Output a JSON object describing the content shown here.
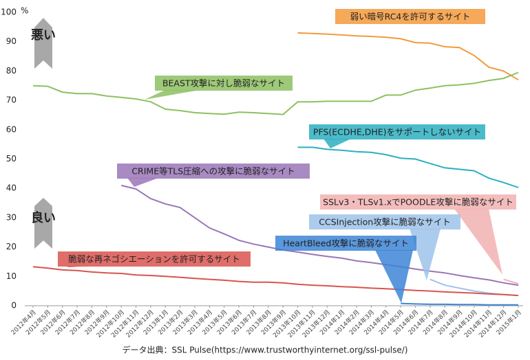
{
  "chart_data": {
    "type": "line",
    "y_unit": "%",
    "categories": [
      "2012年4月",
      "2012年5月",
      "2012年6月",
      "2012年7月",
      "2012年8月",
      "2012年9月",
      "2012年10月",
      "2012年11月",
      "2012年12月",
      "2013年1月",
      "2013年2月",
      "2013年3月",
      "2013年4月",
      "2013年5月",
      "2013年6月",
      "2013年7月",
      "2013年8月",
      "2013年9月",
      "2013年10月",
      "2013年11月",
      "2013年12月",
      "2014年1月",
      "2014年2月",
      "2014年3月",
      "2014年4月",
      "2014年5月",
      "2014年6月",
      "2014年7月",
      "2014年8月",
      "2014年9月",
      "2014年10月",
      "2014年11月",
      "2014年12月",
      "2015年1月"
    ],
    "series": [
      {
        "name": "弱い暗号RC4を許可するサイト",
        "color": "#f39a3c",
        "values": [
          null,
          null,
          null,
          null,
          null,
          null,
          null,
          null,
          null,
          null,
          null,
          null,
          null,
          null,
          null,
          null,
          null,
          null,
          93,
          92.8,
          92.6,
          92.3,
          92,
          91.8,
          91.5,
          91,
          89.7,
          89.5,
          88.3,
          88,
          85.3,
          81.3,
          80,
          77
        ]
      },
      {
        "name": "BEAST攻撃に対し脆弱なサイト",
        "color": "#8dc060",
        "values": [
          75,
          74.8,
          72.8,
          72.3,
          72.3,
          71.5,
          71,
          70.5,
          69.5,
          67,
          66.5,
          65.8,
          65.5,
          65.3,
          66,
          65.8,
          65.5,
          65.2,
          69.5,
          69.5,
          69.7,
          69.7,
          69.7,
          69.7,
          71.8,
          71.8,
          73.5,
          74.2,
          75,
          75.3,
          75.8,
          76.8,
          77.5,
          79.5
        ]
      },
      {
        "name": "PFS(ECDHE,DHE)をサポートしないサイト",
        "color": "#2bafc1",
        "values": [
          null,
          null,
          null,
          null,
          null,
          null,
          null,
          null,
          null,
          null,
          null,
          null,
          null,
          null,
          null,
          null,
          null,
          null,
          54,
          54,
          53.3,
          53,
          52.5,
          52.3,
          51.5,
          50.3,
          50,
          48.5,
          47,
          46.5,
          46,
          43.5,
          42,
          40.3
        ]
      },
      {
        "name": "CRIME等TLS圧縮への攻撃に脆弱なサイト",
        "color": "#9a75b8",
        "values": [
          null,
          null,
          null,
          null,
          null,
          null,
          41,
          39.8,
          36.5,
          34.7,
          33.5,
          30,
          26.5,
          24.5,
          22.3,
          21,
          20,
          19,
          18.3,
          17.5,
          16.8,
          16.2,
          15.3,
          14.7,
          14,
          13.3,
          12.5,
          11.8,
          11.2,
          10.3,
          9.5,
          8.8,
          7.8,
          7
        ]
      },
      {
        "name": "SSLv3・TLSv1.xでPOODLE攻撃に脆弱なサイト",
        "color": "#f2b1b1",
        "values": [
          null,
          null,
          null,
          null,
          null,
          null,
          null,
          null,
          null,
          null,
          null,
          null,
          null,
          null,
          null,
          null,
          null,
          null,
          null,
          null,
          null,
          null,
          null,
          null,
          null,
          null,
          null,
          null,
          null,
          null,
          null,
          null,
          9,
          7.5
        ]
      },
      {
        "name": "CCSInjection攻撃に脆弱なサイト",
        "color": "#9ec3ea",
        "values": [
          null,
          null,
          null,
          null,
          null,
          null,
          null,
          null,
          null,
          null,
          null,
          null,
          null,
          null,
          null,
          null,
          null,
          null,
          null,
          null,
          null,
          null,
          null,
          null,
          null,
          null,
          null,
          9,
          7,
          6,
          5,
          4.3,
          3.8,
          3.5
        ]
      },
      {
        "name": "HeartBleed攻撃に脆弱なサイト",
        "color": "#3d85d6",
        "values": [
          null,
          null,
          null,
          null,
          null,
          null,
          null,
          null,
          null,
          null,
          null,
          null,
          null,
          null,
          null,
          null,
          null,
          null,
          null,
          null,
          null,
          null,
          null,
          null,
          null,
          0.8,
          0.6,
          0.5,
          0.5,
          0.4,
          0.4,
          0.3,
          0.3,
          0.3
        ]
      },
      {
        "name": "脆弱な再ネゴシエーションを許可するサイト",
        "color": "#d9534f",
        "values": [
          13.3,
          12.8,
          12.2,
          12,
          11.5,
          11.2,
          11,
          10.5,
          10.3,
          10,
          9.7,
          9.3,
          9,
          8.7,
          8.3,
          8,
          8,
          7.8,
          7.3,
          7,
          6.8,
          6.5,
          6.3,
          6,
          5.8,
          5.5,
          5.2,
          5,
          4.7,
          4.5,
          4.3,
          4,
          3.8,
          3.5
        ]
      }
    ],
    "ylim": [
      0,
      100
    ],
    "yticks": [
      0,
      10,
      20,
      30,
      40,
      50,
      60,
      70,
      80,
      90,
      100
    ],
    "grid": false,
    "annotations": {
      "bad": "悪い",
      "good": "良い"
    },
    "source": "データ出典：SSL Pulse(https://www.trustworthyinternet.org/ssl-pulse/)"
  }
}
